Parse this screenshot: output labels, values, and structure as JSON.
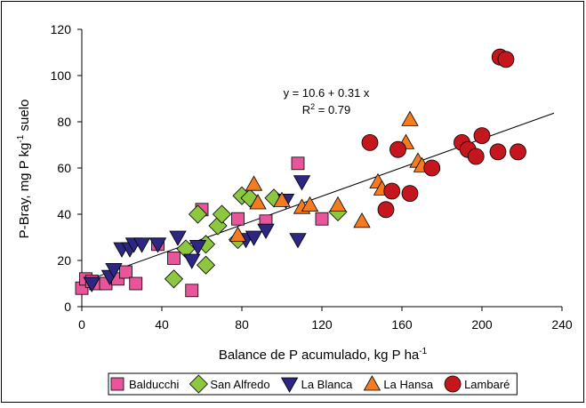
{
  "chart_data": {
    "type": "scatter",
    "xlabel_main": "Balance de P acumulado, kg P ha",
    "xlabel_sup": "-1",
    "ylabel_pre": "P-Bray, mg P kg",
    "ylabel_sup": "-1",
    "ylabel_post": " suelo",
    "xlim": [
      0,
      240
    ],
    "ylim": [
      0,
      120
    ],
    "x_ticks": [
      "0",
      "40",
      "80",
      "120",
      "160",
      "200",
      "240"
    ],
    "y_ticks": [
      "0",
      "20",
      "40",
      "60",
      "80",
      "100",
      "120"
    ],
    "grid": false,
    "legend_position": "bottom",
    "equation": "y = 10.6 + 0.31 x",
    "r2_prefix": "R",
    "r2_sup": "2",
    "r2_value": " = 0.79",
    "trendline": {
      "intercept": 10.6,
      "slope": 0.31,
      "x_range": [
        2,
        236
      ]
    },
    "series": [
      {
        "name": "Balducchi",
        "marker": "square",
        "color": "#e8559a",
        "points": [
          [
            0,
            8
          ],
          [
            2,
            12
          ],
          [
            5,
            11
          ],
          [
            7,
            10
          ],
          [
            12,
            10
          ],
          [
            18,
            12
          ],
          [
            22,
            15
          ],
          [
            27,
            10
          ],
          [
            38,
            27
          ],
          [
            46,
            21
          ],
          [
            55,
            7
          ],
          [
            60,
            42
          ],
          [
            78,
            38
          ],
          [
            92,
            37
          ],
          [
            108,
            62
          ],
          [
            120,
            38
          ]
        ]
      },
      {
        "name": "San Alfredo",
        "marker": "diamond",
        "color": "#8dc63f",
        "points": [
          [
            46,
            12
          ],
          [
            52,
            25
          ],
          [
            58,
            40
          ],
          [
            62,
            27
          ],
          [
            62,
            18
          ],
          [
            68,
            35
          ],
          [
            70,
            40
          ],
          [
            78,
            29
          ],
          [
            80,
            48
          ],
          [
            84,
            47
          ],
          [
            96,
            47
          ],
          [
            128,
            41
          ]
        ]
      },
      {
        "name": "La Blanca",
        "marker": "triangle-down",
        "color": "#2e2683",
        "points": [
          [
            5,
            10
          ],
          [
            14,
            13
          ],
          [
            16,
            16
          ],
          [
            20,
            25
          ],
          [
            24,
            25
          ],
          [
            26,
            27
          ],
          [
            30,
            27
          ],
          [
            38,
            27
          ],
          [
            48,
            30
          ],
          [
            55,
            20
          ],
          [
            58,
            26
          ],
          [
            82,
            29
          ],
          [
            86,
            30
          ],
          [
            92,
            33
          ],
          [
            102,
            46
          ],
          [
            108,
            29
          ],
          [
            110,
            54
          ]
        ]
      },
      {
        "name": "La Hansa",
        "marker": "triangle-up",
        "color": "#f47b20",
        "points": [
          [
            78,
            31
          ],
          [
            86,
            53
          ],
          [
            88,
            45
          ],
          [
            100,
            46
          ],
          [
            110,
            43
          ],
          [
            114,
            44
          ],
          [
            128,
            44
          ],
          [
            140,
            37
          ],
          [
            148,
            54
          ],
          [
            150,
            51
          ],
          [
            162,
            71
          ],
          [
            164,
            81
          ],
          [
            168,
            63
          ],
          [
            170,
            61
          ]
        ]
      },
      {
        "name": "Lambaré",
        "marker": "circle",
        "color": "#c4161c",
        "points": [
          [
            144,
            71
          ],
          [
            152,
            42
          ],
          [
            155,
            50
          ],
          [
            158,
            68
          ],
          [
            164,
            49
          ],
          [
            175,
            60
          ],
          [
            190,
            71
          ],
          [
            193,
            68
          ],
          [
            197,
            65
          ],
          [
            200,
            74
          ],
          [
            208,
            67
          ],
          [
            209,
            108
          ],
          [
            212,
            107
          ],
          [
            218,
            67
          ]
        ]
      }
    ]
  }
}
